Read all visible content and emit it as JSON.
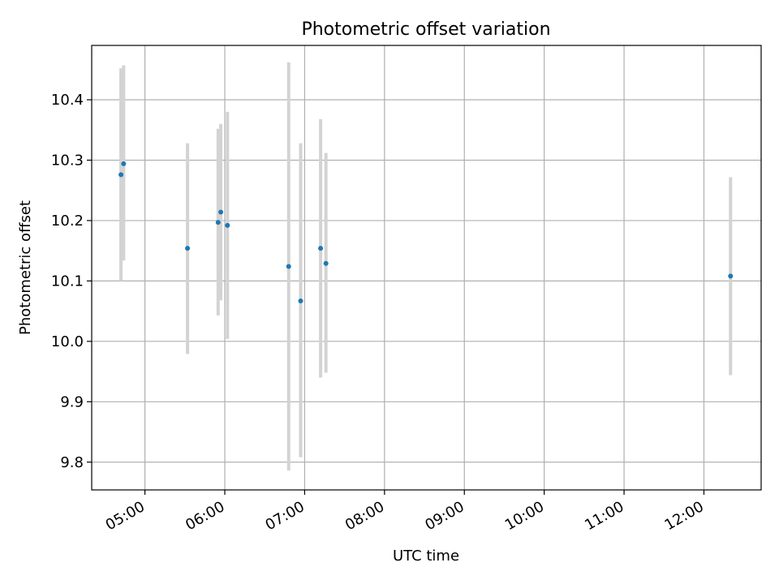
{
  "chart_data": {
    "type": "scatter",
    "title": "Photometric offset variation",
    "xlabel": "UTC time",
    "ylabel": "Photometric offset",
    "x_ticks": [
      "05:00",
      "06:00",
      "07:00",
      "08:00",
      "09:00",
      "10:00",
      "11:00",
      "12:00"
    ],
    "y_ticks": [
      "9.8",
      "9.9",
      "10.0",
      "10.1",
      "10.2",
      "10.3",
      "10.4"
    ],
    "xlim": [
      "04:20",
      "12:43"
    ],
    "ylim": [
      9.754,
      10.49
    ],
    "grid": true,
    "colors": {
      "points": "#1f77b4",
      "errorbars": "#d3d3d3",
      "grid": "#b0b0b0"
    },
    "points": [
      {
        "x": "04:42",
        "y": 10.276,
        "ylow": 10.1,
        "yhigh": 10.452
      },
      {
        "x": "04:44",
        "y": 10.294,
        "ylow": 10.134,
        "yhigh": 10.457
      },
      {
        "x": "05:32",
        "y": 10.154,
        "ylow": 9.979,
        "yhigh": 10.328
      },
      {
        "x": "05:55",
        "y": 10.197,
        "ylow": 10.043,
        "yhigh": 10.352
      },
      {
        "x": "05:57",
        "y": 10.214,
        "ylow": 10.068,
        "yhigh": 10.36
      },
      {
        "x": "06:02",
        "y": 10.192,
        "ylow": 10.004,
        "yhigh": 10.38
      },
      {
        "x": "06:48",
        "y": 10.124,
        "ylow": 9.786,
        "yhigh": 10.462
      },
      {
        "x": "06:57",
        "y": 10.067,
        "ylow": 9.808,
        "yhigh": 10.328
      },
      {
        "x": "07:12",
        "y": 10.154,
        "ylow": 9.94,
        "yhigh": 10.368
      },
      {
        "x": "07:16",
        "y": 10.129,
        "ylow": 9.948,
        "yhigh": 10.312
      },
      {
        "x": "12:20",
        "y": 10.108,
        "ylow": 9.944,
        "yhigh": 10.272
      }
    ]
  }
}
